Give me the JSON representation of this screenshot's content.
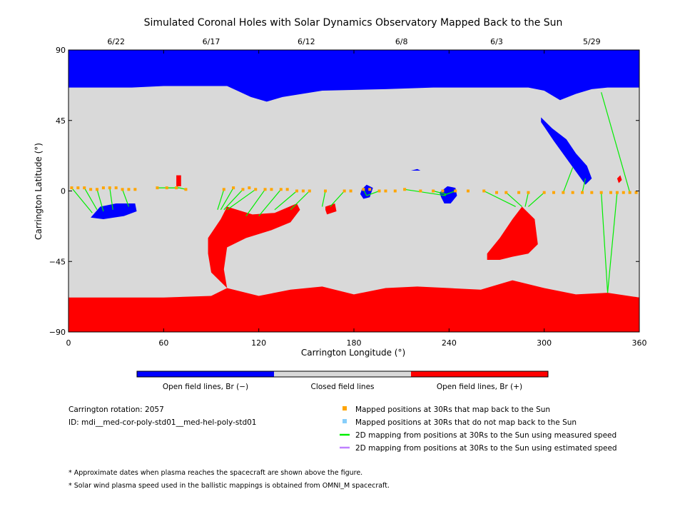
{
  "chart_data": {
    "type": "map",
    "title": "Simulated Coronal Holes with Solar Dynamics Observatory Mapped Back to the Sun",
    "xlabel": "Carrington Longitude (°)",
    "ylabel": "Carrington Latitude (°)",
    "xlim": [
      0,
      360
    ],
    "ylim": [
      -90,
      90
    ],
    "x_ticks": [
      0,
      60,
      120,
      180,
      240,
      300,
      360
    ],
    "y_ticks": [
      -90,
      -45,
      0,
      45,
      90
    ],
    "y_tick_labels": [
      "−90",
      "−45",
      "0",
      "45",
      "90"
    ],
    "date_ticks": [
      {
        "label": "6/22",
        "lon": 30
      },
      {
        "label": "6/17",
        "lon": 90
      },
      {
        "label": "6/12",
        "lon": 150
      },
      {
        "label": "6/8",
        "lon": 210
      },
      {
        "label": "6/3",
        "lon": 270
      },
      {
        "label": "5/29",
        "lon": 330
      }
    ],
    "colors": {
      "open_negative": "#0000ff",
      "closed": "#d9d9d9",
      "open_positive": "#ff0000",
      "mapped_back": "#ffa500",
      "not_mapped": "#87cefa",
      "measured_line": "#00ee00",
      "estimated_line": "#bf80ff"
    },
    "colorbar": {
      "labels": [
        "Open field lines, Br (−)",
        "Closed field lines",
        "Open field lines, Br (+)"
      ]
    },
    "polar_boundary": {
      "north_lon": [
        0,
        20,
        40,
        60,
        80,
        100,
        115,
        125,
        135,
        160,
        200,
        230,
        260,
        290,
        300,
        310,
        320,
        330,
        340,
        360
      ],
      "north_lat": [
        66,
        66,
        66,
        67,
        67,
        67,
        60,
        57,
        60,
        64,
        65,
        66,
        66,
        66,
        64,
        58,
        62,
        65,
        66,
        66
      ],
      "south_lon": [
        0,
        30,
        60,
        90,
        100,
        120,
        140,
        160,
        180,
        200,
        220,
        240,
        260,
        280,
        300,
        320,
        340,
        360
      ],
      "south_lat": [
        -68,
        -68,
        -68,
        -67,
        -62,
        -67,
        -63,
        -61,
        -66,
        -62,
        -61,
        -62,
        -63,
        -57,
        -62,
        -66,
        -65,
        -68
      ]
    },
    "coronal_holes": [
      {
        "polarity": "negative",
        "lon": [
          14,
          20,
          30,
          42,
          43,
          35,
          22,
          14
        ],
        "lat": [
          -17,
          -10,
          -8,
          -8,
          -13,
          -16,
          -18,
          -17
        ]
      },
      {
        "polarity": "negative",
        "lon": [
          298,
          305,
          314,
          320,
          327,
          330,
          326,
          316,
          306,
          298
        ],
        "lat": [
          47,
          40,
          33,
          24,
          16,
          8,
          4,
          18,
          32,
          44
        ]
      },
      {
        "polarity": "negative",
        "lon": [
          185,
          188,
          192,
          190,
          186,
          184
        ],
        "lat": [
          1,
          4,
          2,
          -4,
          -5,
          -2
        ]
      },
      {
        "polarity": "negative",
        "lon": [
          234,
          239,
          244,
          245,
          241,
          237,
          235
        ],
        "lat": [
          -1,
          3,
          2,
          -3,
          -8,
          -8,
          -4
        ]
      },
      {
        "polarity": "negative",
        "lon": [
          216,
          220,
          222
        ],
        "lat": [
          13,
          14,
          13
        ]
      },
      {
        "polarity": "positive",
        "lon": [
          68,
          71,
          71,
          68
        ],
        "lat": [
          3,
          3,
          10,
          10
        ]
      },
      {
        "polarity": "positive",
        "lon": [
          162,
          168,
          169,
          163,
          162
        ],
        "lat": [
          -10,
          -8,
          -13,
          -15,
          -12
        ]
      },
      {
        "polarity": "positive",
        "lon": [
          88,
          96,
          100,
          116,
          130,
          144,
          146,
          140,
          128,
          112,
          100,
          98,
          100,
          90,
          88
        ],
        "lat": [
          -30,
          -18,
          -10,
          -15,
          -14,
          -8,
          -12,
          -20,
          -25,
          -30,
          -36,
          -50,
          -62,
          -52,
          -40
        ]
      },
      {
        "polarity": "positive",
        "lon": [
          264,
          272,
          280,
          286,
          294,
          296,
          290,
          280,
          272,
          264
        ],
        "lat": [
          -40,
          -30,
          -18,
          -10,
          -18,
          -34,
          -40,
          -42,
          -44,
          -44
        ]
      },
      {
        "polarity": "positive",
        "lon": [
          346,
          348,
          349,
          347
        ],
        "lat": [
          8,
          10,
          7,
          5
        ]
      }
    ],
    "mapped_positions_lon": [
      2,
      6,
      10,
      14,
      18,
      22,
      26,
      30,
      34,
      38,
      42,
      56,
      62,
      68,
      74,
      98,
      104,
      110,
      114,
      118,
      124,
      128,
      134,
      138,
      144,
      148,
      152,
      162,
      174,
      178,
      186,
      190,
      196,
      200,
      206,
      212,
      222,
      230,
      236,
      244,
      252,
      262,
      270,
      276,
      284,
      290,
      300,
      306,
      312,
      318,
      324,
      330,
      336,
      342,
      346,
      350,
      354,
      358
    ],
    "mapped_positions_lat": [
      2,
      2,
      2,
      1,
      1,
      2,
      2,
      2,
      1,
      1,
      1,
      2,
      2,
      2,
      1,
      1,
      2,
      1,
      2,
      1,
      1,
      1,
      1,
      1,
      0,
      0,
      0,
      0,
      0,
      0,
      1,
      1,
      0,
      0,
      0,
      1,
      0,
      0,
      0,
      0,
      0,
      0,
      -1,
      -1,
      -1,
      -1,
      -1,
      -1,
      -1,
      -1,
      -1,
      -1,
      -1,
      -1,
      -1,
      -1,
      -1,
      -1
    ],
    "mapping_lines_measured": {
      "from_lon": [
        2,
        10,
        18,
        26,
        34,
        56,
        62,
        68,
        74,
        98,
        104,
        110,
        118,
        124,
        134,
        144,
        152,
        162,
        174,
        186,
        196,
        212,
        230,
        244,
        262,
        276,
        290,
        300,
        312,
        324,
        336,
        346,
        354
      ],
      "from_lat": [
        2,
        2,
        1,
        2,
        1,
        2,
        2,
        2,
        1,
        1,
        2,
        1,
        1,
        1,
        1,
        0,
        0,
        0,
        0,
        1,
        0,
        1,
        0,
        0,
        0,
        -1,
        -1,
        -1,
        -1,
        -1,
        -1,
        -1,
        -1
      ],
      "to_lon": [
        15,
        18,
        22,
        28,
        38,
        70,
        70,
        69,
        70,
        94,
        96,
        98,
        100,
        112,
        120,
        130,
        140,
        160,
        165,
        188,
        188,
        238,
        238,
        236,
        282,
        286,
        288,
        290,
        318,
        326,
        340,
        340,
        336
      ],
      "to_lat": [
        -14,
        -12,
        -13,
        -12,
        -10,
        2,
        2,
        3,
        2,
        -12,
        -12,
        -12,
        -12,
        -16,
        -16,
        -12,
        -12,
        -10,
        -10,
        -3,
        -3,
        -3,
        -2,
        -3,
        -10,
        -10,
        -10,
        -10,
        15,
        8,
        -65,
        -65,
        63
      ]
    },
    "mapping_lines_estimated": {
      "from_lon": [],
      "from_lat": [],
      "to_lon": [],
      "to_lat": []
    },
    "legend": [
      {
        "marker": "square",
        "color": "#ffa500",
        "label": "Mapped positions at 30Rs that map back to the Sun"
      },
      {
        "marker": "square",
        "color": "#87cefa",
        "label": "Mapped positions at 30Rs that do not map back to the Sun"
      },
      {
        "marker": "line",
        "color": "#00ee00",
        "label": "2D mapping from positions at 30Rs to the Sun using measured speed"
      },
      {
        "marker": "line",
        "color": "#bf80ff",
        "label": "2D mapping from positions at 30Rs to the Sun using estimated speed"
      }
    ],
    "info": {
      "rotation": "Carrington rotation: 2057",
      "id": "ID: mdi__med-cor-poly-std01__med-hel-poly-std01"
    },
    "footnotes": [
      "* Approximate dates when plasma reaches the spacecraft are shown above the figure.",
      "* Solar wind plasma speed used in the ballistic mappings is obtained from OMNI_M spacecraft."
    ]
  }
}
